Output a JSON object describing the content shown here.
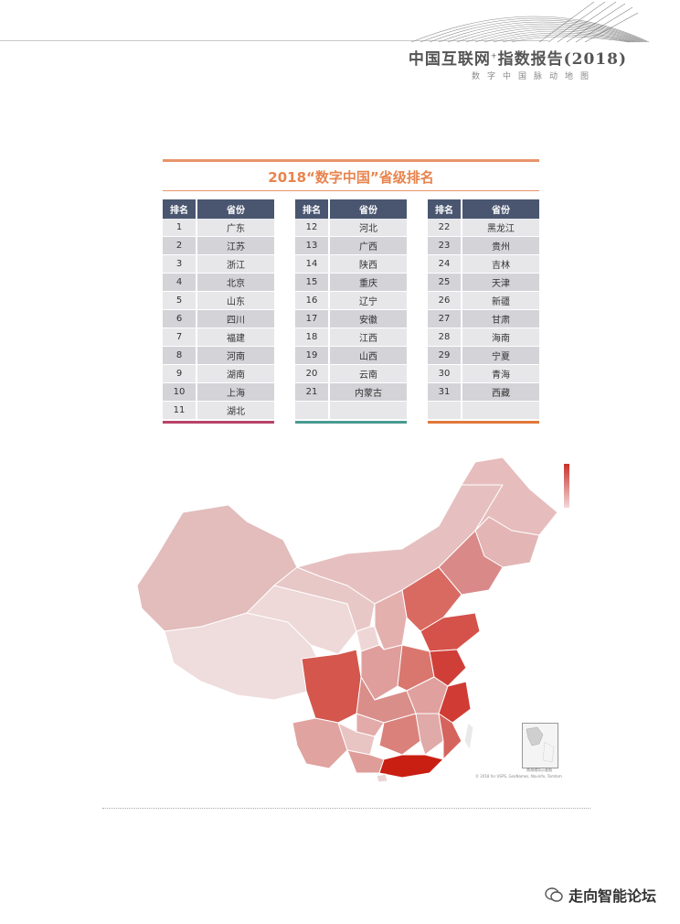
{
  "header": {
    "title": "中国互联网",
    "title_reg": "+",
    "title_suffix": "指数报告(2018)",
    "subtitle": "数字中国脉动地图"
  },
  "ranking": {
    "title": "2018“数字中国”省级排名",
    "col_rank": "排名",
    "col_province": "省份",
    "table1": [
      {
        "rank": "1",
        "province": "广东"
      },
      {
        "rank": "2",
        "province": "江苏"
      },
      {
        "rank": "3",
        "province": "浙江"
      },
      {
        "rank": "4",
        "province": "北京"
      },
      {
        "rank": "5",
        "province": "山东"
      },
      {
        "rank": "6",
        "province": "四川"
      },
      {
        "rank": "7",
        "province": "福建"
      },
      {
        "rank": "8",
        "province": "河南"
      },
      {
        "rank": "9",
        "province": "湖南"
      },
      {
        "rank": "10",
        "province": "上海"
      },
      {
        "rank": "11",
        "province": "湖北"
      }
    ],
    "table2": [
      {
        "rank": "12",
        "province": "河北"
      },
      {
        "rank": "13",
        "province": "广西"
      },
      {
        "rank": "14",
        "province": "陕西"
      },
      {
        "rank": "15",
        "province": "重庆"
      },
      {
        "rank": "16",
        "province": "辽宁"
      },
      {
        "rank": "17",
        "province": "安徽"
      },
      {
        "rank": "18",
        "province": "江西"
      },
      {
        "rank": "19",
        "province": "山西"
      },
      {
        "rank": "20",
        "province": "云南"
      },
      {
        "rank": "21",
        "province": "内蒙古"
      },
      {
        "rank": "",
        "province": ""
      }
    ],
    "table3": [
      {
        "rank": "22",
        "province": "黑龙江"
      },
      {
        "rank": "23",
        "province": "贵州"
      },
      {
        "rank": "24",
        "province": "吉林"
      },
      {
        "rank": "25",
        "province": "天津"
      },
      {
        "rank": "26",
        "province": "新疆"
      },
      {
        "rank": "27",
        "province": "甘肃"
      },
      {
        "rank": "28",
        "province": "海南"
      },
      {
        "rank": "29",
        "province": "宁夏"
      },
      {
        "rank": "30",
        "province": "青海"
      },
      {
        "rank": "31",
        "province": "西藏"
      },
      {
        "rank": "",
        "province": ""
      }
    ]
  },
  "map": {
    "inset_label": "南海诸岛示意图",
    "credit": "© 2018 for USPS, GeoNames, Navinfo, Tomtom"
  },
  "watermark": {
    "text": "走向智能论坛"
  },
  "colors": {
    "accent": "#e8844e",
    "table_header": "#4a5670",
    "bar1": "#b8436a",
    "bar2": "#4a9a92",
    "bar3": "#e0783a"
  }
}
